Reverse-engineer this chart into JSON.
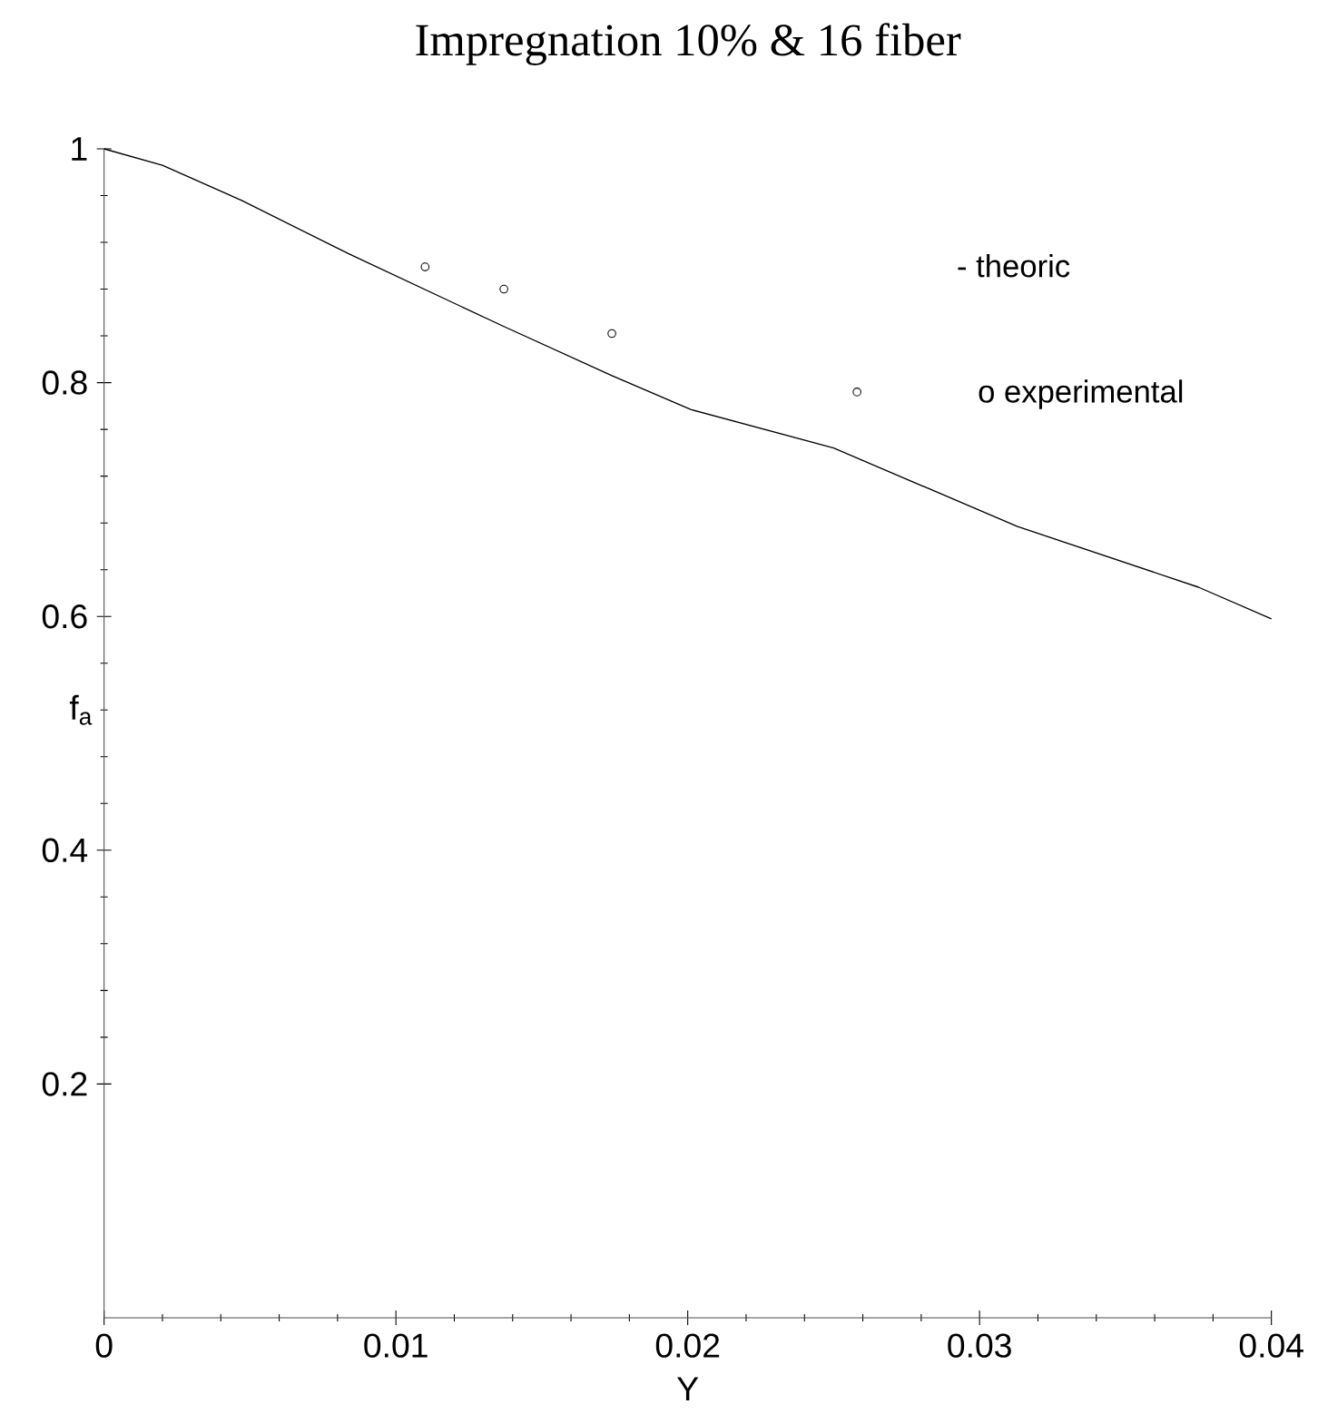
{
  "chart_data": {
    "type": "line",
    "title": "Impregnation 10% & 16 fiber",
    "xlabel": "Y",
    "ylabel": "f$_{a}$",
    "xlim": [
      0,
      0.04
    ],
    "ylim": [
      0,
      1
    ],
    "xticks": [
      0,
      0.01,
      0.02,
      0.03,
      0.04
    ],
    "yticks": [
      0.2,
      0.4,
      0.6,
      0.8,
      1
    ],
    "grid": false,
    "annotations": [
      "- theoric",
      "o experimental"
    ],
    "series": [
      {
        "color": "#000000",
        "marker": "none",
        "line_style": "solid",
        "x": [
          0,
          0.002,
          0.0047,
          0.0084,
          0.0137,
          0.0174,
          0.0201,
          0.025,
          0.0313,
          0.0375,
          0.04
        ],
        "values": [
          1,
          0.986,
          0.956,
          0.91,
          0.848,
          0.806,
          0.777,
          0.744,
          0.677,
          0.625,
          0.598
        ]
      },
      {
        "type": "scatter",
        "color": "#000000",
        "marker": "circle",
        "x": [
          0.011,
          0.0137,
          0.0174,
          0.0258
        ],
        "values": [
          0.899,
          0.88,
          0.842,
          0.792
        ]
      }
    ]
  }
}
